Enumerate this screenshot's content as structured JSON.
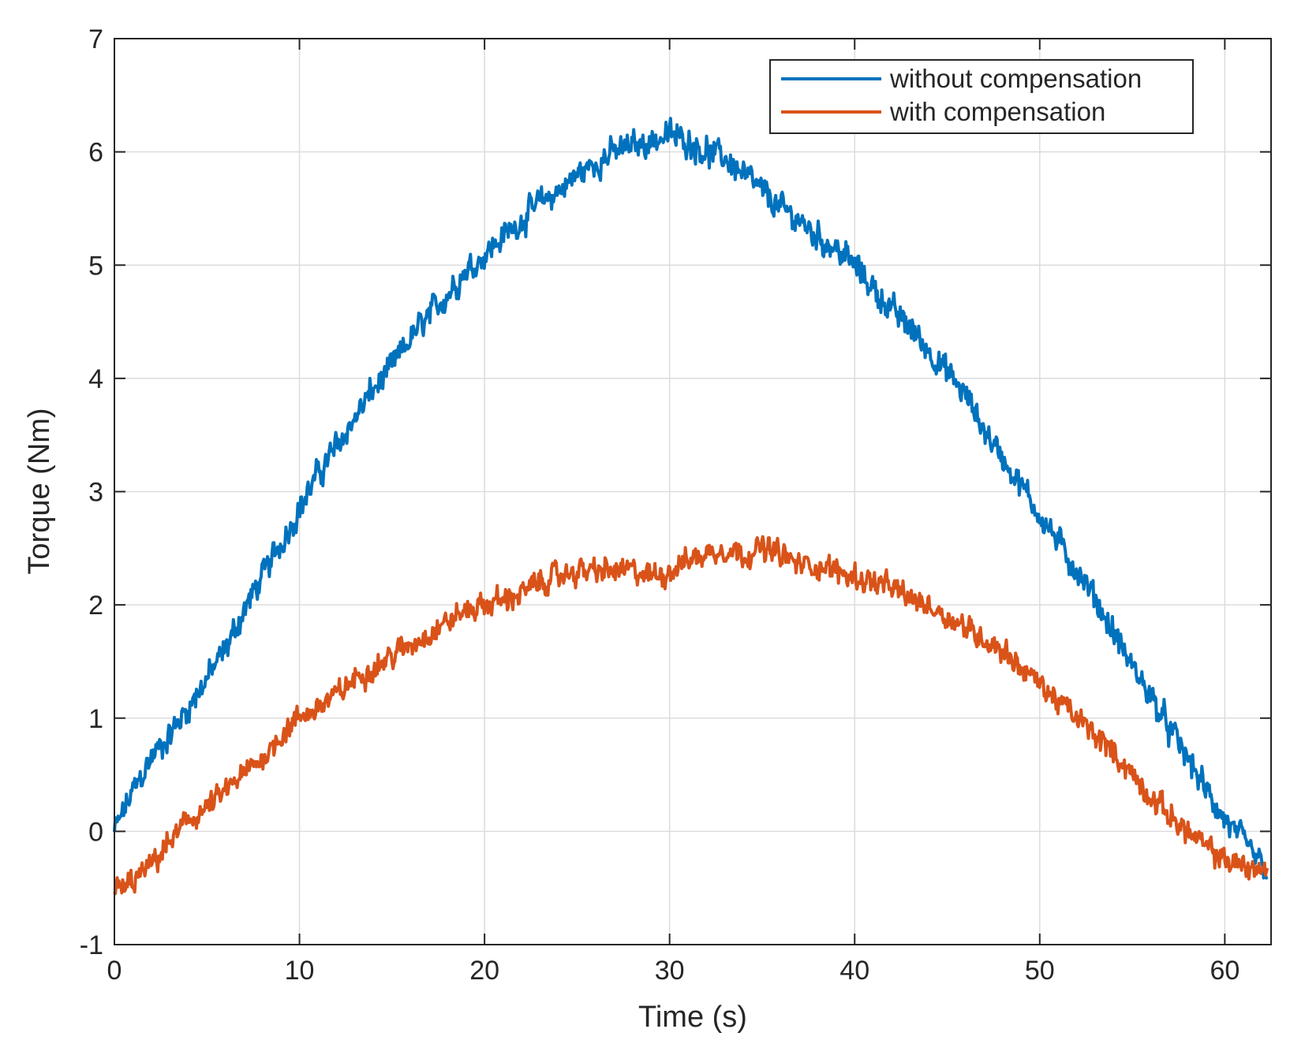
{
  "chart_data": {
    "type": "line",
    "xlabel": "Time (s)",
    "ylabel": "Torque (Nm)",
    "xlim": [
      0,
      62.5
    ],
    "ylim": [
      -1,
      7
    ],
    "xticks": [
      0,
      10,
      20,
      30,
      40,
      50,
      60
    ],
    "yticks": [
      -1,
      0,
      1,
      2,
      3,
      4,
      5,
      6,
      7
    ],
    "grid": true,
    "legend_position": "top-right",
    "series": [
      {
        "name": "without compensation",
        "color": "#0072BD",
        "x": [
          0,
          1,
          2,
          3,
          4,
          5,
          6,
          7,
          8,
          9,
          10,
          11,
          12,
          13,
          14,
          15,
          16,
          17,
          18,
          19,
          20,
          21,
          22,
          23,
          24,
          25,
          26,
          27,
          28,
          29,
          30,
          31,
          32,
          33,
          34,
          35,
          36,
          37,
          38,
          39,
          40,
          41,
          42,
          43,
          44,
          45,
          46,
          47,
          48,
          49,
          50,
          51,
          52,
          53,
          54,
          55,
          56,
          57,
          58,
          59,
          60,
          61,
          62.3
        ],
        "y": [
          0.0,
          0.35,
          0.65,
          0.85,
          1.1,
          1.35,
          1.6,
          1.95,
          2.25,
          2.55,
          2.85,
          3.15,
          3.4,
          3.65,
          3.9,
          4.1,
          4.35,
          4.55,
          4.75,
          4.95,
          5.1,
          5.25,
          5.4,
          5.55,
          5.65,
          5.8,
          5.9,
          6.0,
          6.05,
          6.1,
          6.15,
          6.1,
          6.0,
          5.95,
          5.8,
          5.65,
          5.5,
          5.4,
          5.25,
          5.15,
          5.0,
          4.8,
          4.6,
          4.45,
          4.25,
          4.05,
          3.85,
          3.55,
          3.3,
          3.05,
          2.8,
          2.55,
          2.3,
          2.05,
          1.75,
          1.45,
          1.2,
          0.9,
          0.65,
          0.35,
          0.1,
          -0.1,
          -0.35
        ]
      },
      {
        "name": "with compensation",
        "color": "#D95319",
        "x": [
          0,
          1,
          2,
          3,
          4,
          5,
          6,
          7,
          8,
          9,
          10,
          11,
          12,
          13,
          14,
          15,
          16,
          17,
          18,
          19,
          20,
          21,
          22,
          23,
          24,
          25,
          26,
          27,
          28,
          29,
          30,
          31,
          32,
          33,
          34,
          35,
          36,
          37,
          38,
          39,
          40,
          41,
          42,
          43,
          44,
          45,
          46,
          47,
          48,
          49,
          50,
          51,
          52,
          53,
          54,
          55,
          56,
          57,
          58,
          59,
          60,
          61,
          62.3
        ],
        "y": [
          -0.55,
          -0.45,
          -0.3,
          -0.1,
          0.1,
          0.2,
          0.35,
          0.5,
          0.65,
          0.85,
          1.0,
          1.1,
          1.2,
          1.35,
          1.45,
          1.55,
          1.65,
          1.75,
          1.85,
          1.95,
          2.0,
          2.05,
          2.1,
          2.2,
          2.25,
          2.3,
          2.3,
          2.3,
          2.3,
          2.25,
          2.3,
          2.4,
          2.45,
          2.5,
          2.45,
          2.5,
          2.45,
          2.35,
          2.35,
          2.3,
          2.25,
          2.2,
          2.15,
          2.05,
          2.0,
          1.9,
          1.8,
          1.7,
          1.6,
          1.45,
          1.3,
          1.15,
          1.0,
          0.85,
          0.7,
          0.5,
          0.3,
          0.15,
          0.0,
          -0.15,
          -0.25,
          -0.3,
          -0.35
        ]
      }
    ]
  }
}
